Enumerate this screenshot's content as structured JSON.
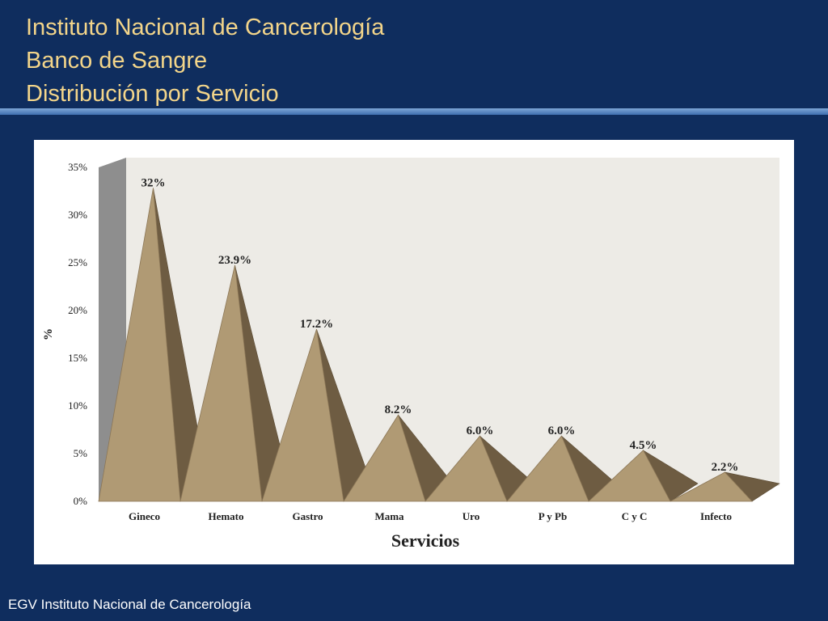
{
  "slide": {
    "title_lines": [
      "Instituto Nacional de Cancerología",
      "Banco de Sangre",
      "Distribución por Servicio"
    ],
    "footer": "EGV Instituto Nacional de Cancerología"
  },
  "colors": {
    "background": "#0f2d5e",
    "title": "#f3d58a",
    "pyramid_front": "#b09a74",
    "pyramid_side": "#6e5c42",
    "plot_back": "#edebe6"
  },
  "chart_data": {
    "type": "bar",
    "style": "3d-pyramid",
    "categories": [
      "Gineco",
      "Hemato",
      "Gastro",
      "Mama",
      "Uro",
      "P y Pb",
      "C y C",
      "Infecto"
    ],
    "values": [
      32,
      23.9,
      17.2,
      8.2,
      6.0,
      6.0,
      4.5,
      2.2
    ],
    "data_labels": [
      "32%",
      "23.9%",
      "17.2%",
      "8.2%",
      "6.0%",
      "6.0%",
      "4.5%",
      "2.2%"
    ],
    "xlabel": "Servicios",
    "ylabel": "%",
    "ylim": [
      0,
      35
    ],
    "yticks": [
      "0%",
      "5%",
      "10%",
      "15%",
      "20%",
      "25%",
      "30%",
      "35%"
    ],
    "grid": false,
    "legend": "none"
  }
}
